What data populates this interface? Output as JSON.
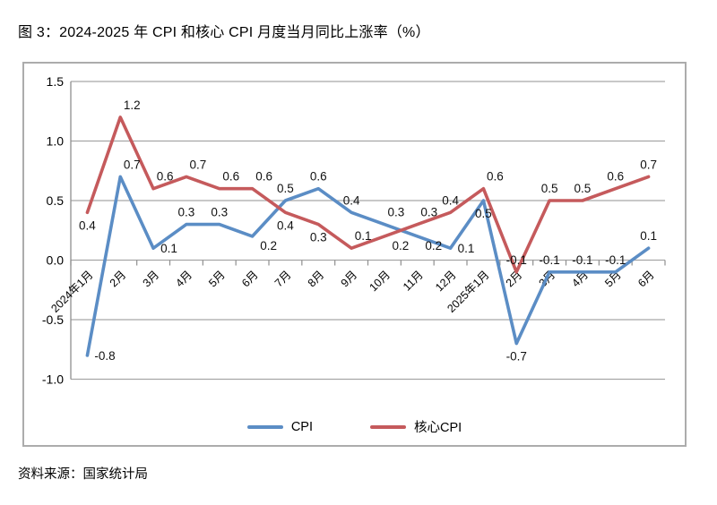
{
  "title": "图 3：2024-2025 年 CPI 和核心 CPI 月度当月同比上涨率（%）",
  "source": "资料来源：国家统计局",
  "chart_data": {
    "type": "line",
    "title": "图 3：2024-2025 年 CPI 和核心 CPI 月度当月同比上涨率（%）",
    "categories": [
      "2024年1月",
      "2月",
      "3月",
      "4月",
      "5月",
      "6月",
      "7月",
      "8月",
      "9月",
      "10月",
      "11月",
      "12月",
      "2025年1月",
      "2月",
      "3月",
      "4月",
      "5月",
      "6月"
    ],
    "series": [
      {
        "name": "CPI",
        "color": "#5b8dc5",
        "values": [
          -0.8,
          0.7,
          0.1,
          0.3,
          0.3,
          0.2,
          0.5,
          0.6,
          0.4,
          0.3,
          0.2,
          0.1,
          0.5,
          -0.7,
          -0.1,
          -0.1,
          -0.1,
          0.1
        ]
      },
      {
        "name": "核心CPI",
        "color": "#c55a5c",
        "values": [
          0.4,
          1.2,
          0.6,
          0.7,
          0.6,
          0.6,
          0.4,
          0.3,
          0.1,
          0.2,
          0.3,
          0.4,
          0.6,
          -0.1,
          0.5,
          0.5,
          0.6,
          0.7
        ]
      }
    ],
    "ylim": [
      -1.0,
      1.5
    ],
    "ytick_labels": [
      "1.5",
      "1.0",
      "0.5",
      "0.0",
      "-0.5",
      "-1.0"
    ],
    "grid": true,
    "data_labels": true,
    "legend_position": "bottom",
    "grid_color": "#a6a6a6",
    "axis_color": "#8f8f8f",
    "label_color": "#111111",
    "xlabel": "",
    "ylabel": ""
  }
}
